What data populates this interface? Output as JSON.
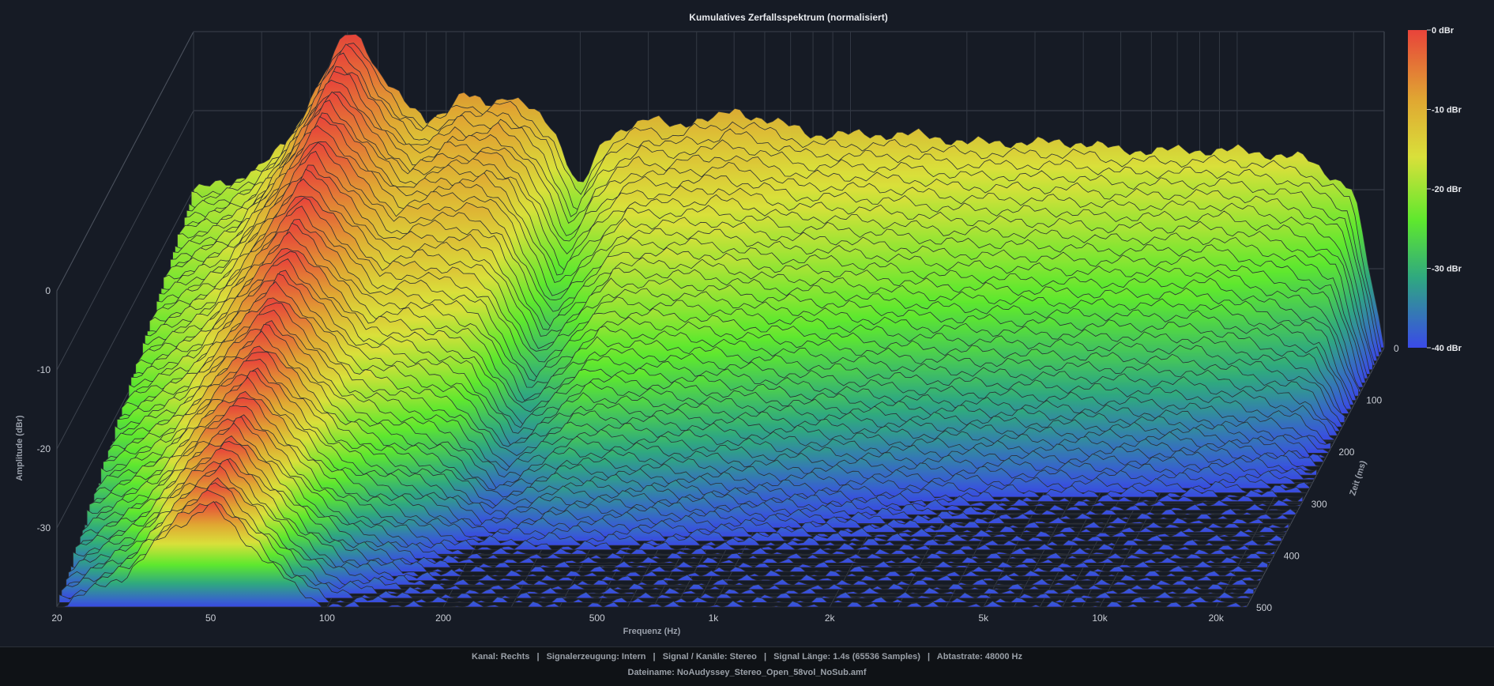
{
  "chart_data": {
    "type": "area",
    "subtype": "waterfall-3d",
    "title": "Kumulatives Zerfallsspektrum (normalisiert)",
    "xlabel": "Frequenz (Hz)",
    "ylabel": "Amplitude (dBr)",
    "zlabel": "Zeit (ms)",
    "x_scale": "log",
    "x_ticks": [
      20,
      50,
      100,
      200,
      500,
      1000,
      2000,
      5000,
      10000,
      20000
    ],
    "x_tick_labels": [
      "20",
      "50",
      "100",
      "200",
      "500",
      "1k",
      "2k",
      "5k",
      "10k",
      "20k"
    ],
    "xlim": [
      20,
      24000
    ],
    "y_ticks": [
      0,
      -10,
      -20,
      -30
    ],
    "y_tick_labels": [
      "0",
      "-10",
      "-20",
      "-30"
    ],
    "ylim": [
      -40,
      0
    ],
    "z_ticks": [
      0,
      100,
      200,
      300,
      400,
      500
    ],
    "z_tick_labels": [
      "0",
      "100",
      "200",
      "300",
      "400",
      "500"
    ],
    "zlim": [
      0,
      500
    ],
    "grid": true,
    "colorbar": {
      "labels": [
        "0 dBr",
        "-10 dBr",
        "-20 dBr",
        "-30 dBr",
        "-40 dBr"
      ],
      "values": [
        0,
        -10,
        -20,
        -30,
        -40
      ],
      "colors": [
        "#e8433a",
        "#e0a732",
        "#d9e03a",
        "#5ee82e",
        "#2fa880",
        "#3a4ae8"
      ]
    },
    "series": [
      {
        "time_ms": 0,
        "points": [
          [
            20,
            -20
          ],
          [
            25,
            -19
          ],
          [
            30,
            -17
          ],
          [
            35,
            -14
          ],
          [
            40,
            -9
          ],
          [
            45,
            -4
          ],
          [
            50,
            0
          ],
          [
            55,
            -1
          ],
          [
            60,
            -5
          ],
          [
            70,
            -9
          ],
          [
            80,
            -11
          ],
          [
            90,
            -10
          ],
          [
            100,
            -8
          ],
          [
            115,
            -9
          ],
          [
            130,
            -8
          ],
          [
            150,
            -10
          ],
          [
            170,
            -12
          ],
          [
            200,
            -20
          ],
          [
            230,
            -14
          ],
          [
            260,
            -12
          ],
          [
            300,
            -11
          ],
          [
            350,
            -12
          ],
          [
            400,
            -11
          ],
          [
            450,
            -11
          ],
          [
            500,
            -10
          ],
          [
            600,
            -11
          ],
          [
            700,
            -12
          ],
          [
            800,
            -13
          ],
          [
            1000,
            -13
          ],
          [
            1500,
            -13
          ],
          [
            2000,
            -14
          ],
          [
            3000,
            -14
          ],
          [
            4000,
            -14
          ],
          [
            5000,
            -15
          ],
          [
            7000,
            -15
          ],
          [
            10000,
            -15
          ],
          [
            15000,
            -16
          ],
          [
            20000,
            -20
          ],
          [
            24000,
            -40
          ]
        ]
      },
      {
        "time_ms": 100,
        "points": [
          [
            20,
            -24
          ],
          [
            30,
            -20
          ],
          [
            40,
            -12
          ],
          [
            50,
            -5
          ],
          [
            60,
            -9
          ],
          [
            80,
            -15
          ],
          [
            100,
            -14
          ],
          [
            130,
            -14
          ],
          [
            150,
            -16
          ],
          [
            200,
            -28
          ],
          [
            300,
            -20
          ],
          [
            500,
            -20
          ],
          [
            800,
            -22
          ],
          [
            1000,
            -22
          ],
          [
            2000,
            -24
          ],
          [
            5000,
            -25
          ],
          [
            10000,
            -25
          ],
          [
            20000,
            -30
          ],
          [
            24000,
            -40
          ]
        ]
      },
      {
        "time_ms": 200,
        "points": [
          [
            20,
            -28
          ],
          [
            30,
            -24
          ],
          [
            40,
            -17
          ],
          [
            50,
            -12
          ],
          [
            60,
            -16
          ],
          [
            80,
            -22
          ],
          [
            100,
            -22
          ],
          [
            150,
            -25
          ],
          [
            200,
            -34
          ],
          [
            300,
            -28
          ],
          [
            500,
            -29
          ],
          [
            1000,
            -31
          ],
          [
            2000,
            -33
          ],
          [
            5000,
            -34
          ],
          [
            10000,
            -35
          ],
          [
            20000,
            -38
          ],
          [
            24000,
            -40
          ]
        ]
      },
      {
        "time_ms": 300,
        "points": [
          [
            20,
            -32
          ],
          [
            30,
            -28
          ],
          [
            40,
            -22
          ],
          [
            50,
            -18
          ],
          [
            60,
            -22
          ],
          [
            80,
            -28
          ],
          [
            100,
            -30
          ],
          [
            150,
            -33
          ],
          [
            200,
            -38
          ],
          [
            300,
            -35
          ],
          [
            500,
            -36
          ],
          [
            1000,
            -38
          ],
          [
            2000,
            -39
          ],
          [
            5000,
            -40
          ],
          [
            10000,
            -40
          ],
          [
            20000,
            -40
          ],
          [
            24000,
            -40
          ]
        ]
      },
      {
        "time_ms": 400,
        "points": [
          [
            20,
            -36
          ],
          [
            30,
            -32
          ],
          [
            40,
            -26
          ],
          [
            50,
            -23
          ],
          [
            60,
            -27
          ],
          [
            80,
            -33
          ],
          [
            100,
            -36
          ],
          [
            150,
            -39
          ],
          [
            200,
            -40
          ],
          [
            500,
            -40
          ],
          [
            24000,
            -40
          ]
        ]
      },
      {
        "time_ms": 500,
        "points": [
          [
            20,
            -40
          ],
          [
            30,
            -36
          ],
          [
            40,
            -30
          ],
          [
            50,
            -27
          ],
          [
            60,
            -31
          ],
          [
            80,
            -37
          ],
          [
            100,
            -40
          ],
          [
            24000,
            -40
          ]
        ]
      }
    ]
  },
  "footer": {
    "channel": "Kanal: Rechts",
    "signal_gen": "Signalerzeugung: Intern",
    "signal_channels": "Signal / Kanäle: Stereo",
    "signal_length": "Signal Länge: 1.4s (65536 Samples)",
    "sample_rate": "Abtastrate: 48000 Hz",
    "filename": "Dateiname: NoAudyssey_Stereo_Open_58vol_NoSub.amf",
    "separator": "|"
  }
}
